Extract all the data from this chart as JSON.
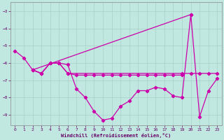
{
  "background_color": "#c0e8e0",
  "grid_color": "#a8d0c8",
  "line_color": "#cc00aa",
  "xlabel": "Windchill (Refroidissement éolien,°C)",
  "xlim": [
    -0.5,
    23.5
  ],
  "ylim": [
    -9.6,
    -2.5
  ],
  "yticks": [
    -9,
    -8,
    -7,
    -6,
    -5,
    -4,
    -3
  ],
  "xticks": [
    0,
    1,
    2,
    3,
    4,
    5,
    6,
    7,
    8,
    9,
    10,
    11,
    12,
    13,
    14,
    15,
    16,
    17,
    18,
    19,
    20,
    21,
    22,
    23
  ],
  "line1_x": [
    0,
    1,
    2,
    3,
    4,
    5,
    6,
    7,
    8,
    9,
    10,
    11,
    12,
    13,
    14,
    15,
    16,
    17,
    18,
    19,
    20,
    21,
    22,
    23
  ],
  "line1_y": [
    -5.3,
    -5.7,
    -6.4,
    -6.6,
    -6.0,
    -6.0,
    -6.1,
    -7.5,
    -8.0,
    -8.8,
    -9.3,
    -9.2,
    -8.5,
    -8.2,
    -7.6,
    -7.6,
    -7.4,
    -7.5,
    -7.9,
    -8.0,
    -3.2,
    -9.1,
    -7.6,
    -6.9
  ],
  "line2_x": [
    2,
    3,
    4,
    5,
    6,
    19,
    20,
    21,
    22,
    23
  ],
  "line2_y": [
    -6.4,
    -6.6,
    -6.0,
    -6.0,
    -6.6,
    -6.6,
    -6.6,
    -6.6,
    -6.6,
    -6.6
  ],
  "line3_x": [
    2,
    20
  ],
  "line3_y": [
    -6.4,
    -3.2
  ],
  "line4_x": [
    2,
    3,
    4,
    5,
    6,
    7,
    8,
    9,
    10,
    11,
    12,
    13,
    14,
    15,
    16,
    17,
    18,
    19
  ],
  "line4_y": [
    -6.4,
    -6.6,
    -6.0,
    -6.0,
    -6.6,
    -6.7,
    -6.7,
    -6.7,
    -6.7,
    -6.7,
    -6.7,
    -6.7,
    -6.7,
    -6.7,
    -6.7,
    -6.7,
    -6.7,
    -6.7
  ]
}
